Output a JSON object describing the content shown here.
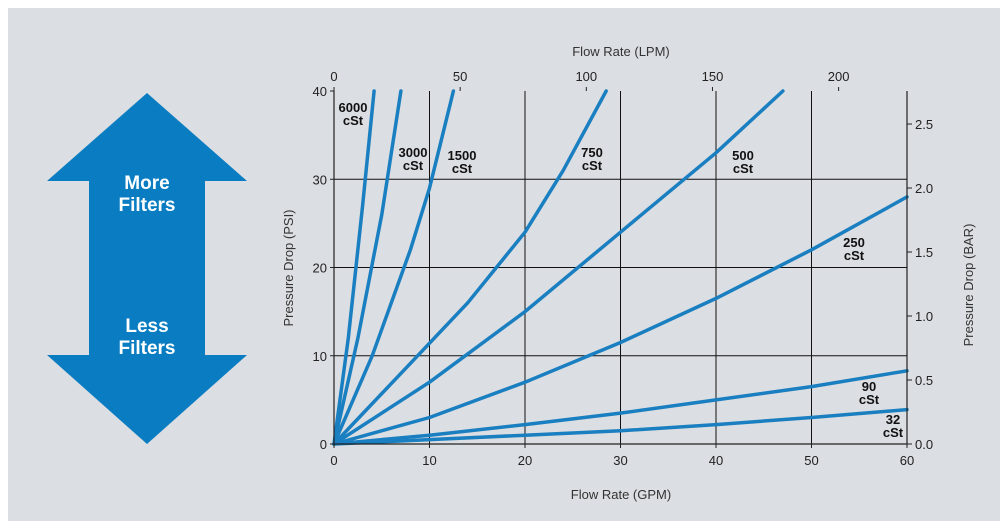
{
  "arrow": {
    "top_label_1": "More",
    "top_label_2": "Filters",
    "bottom_label_1": "Less",
    "bottom_label_2": "Filters",
    "color": "#0a7dc2"
  },
  "chart_data": {
    "type": "line",
    "title": "",
    "xlabel": "Flow Rate (GPM)",
    "ylabel": "Pressure Drop (PSI)",
    "x2label": "Flow Rate (LPM)",
    "y2label": "Pressure Drop (BAR)",
    "xlim": [
      0,
      60
    ],
    "ylim": [
      0,
      40
    ],
    "x2lim": [
      0,
      227.1
    ],
    "y2lim": [
      0,
      2.758
    ],
    "xticks": [
      "0",
      "10",
      "20",
      "30",
      "40",
      "50",
      "60"
    ],
    "yticks": [
      "0",
      "10",
      "20",
      "30",
      "40"
    ],
    "x2ticks": [
      "0",
      "50",
      "100",
      "150",
      "200"
    ],
    "y2ticks": [
      "0.0",
      "0.5",
      "1.0",
      "1.5",
      "2.0",
      "2.5"
    ],
    "grid": true,
    "line_color": "#1a7fc1",
    "series": [
      {
        "name": "6000 cSt",
        "label_1": "6000",
        "label_2": "cSt",
        "x": [
          0,
          1.5,
          3,
          4.2
        ],
        "y": [
          0,
          12,
          27,
          40
        ]
      },
      {
        "name": "3000 cSt",
        "label_1": "3000",
        "label_2": "cSt",
        "x": [
          0,
          2.5,
          5,
          7
        ],
        "y": [
          0,
          12,
          26,
          40
        ]
      },
      {
        "name": "1500 cSt",
        "label_1": "1500",
        "label_2": "cSt",
        "x": [
          0,
          4,
          8,
          10,
          12.5
        ],
        "y": [
          0,
          10,
          22,
          29,
          40
        ]
      },
      {
        "name": "750 cSt",
        "label_1": "750",
        "label_2": "cSt",
        "x": [
          0,
          7,
          14,
          20,
          24,
          28.5
        ],
        "y": [
          0,
          8,
          16,
          24,
          31,
          40
        ]
      },
      {
        "name": "500 cSt",
        "label_1": "500",
        "label_2": "cSt",
        "x": [
          0,
          10,
          20,
          30,
          40,
          47
        ],
        "y": [
          0,
          7,
          15,
          24,
          33,
          40
        ]
      },
      {
        "name": "250 cSt",
        "label_1": "250",
        "label_2": "cSt",
        "x": [
          0,
          10,
          20,
          30,
          40,
          50,
          60
        ],
        "y": [
          0,
          3,
          7,
          11.5,
          16.5,
          22,
          28
        ]
      },
      {
        "name": "90 cSt",
        "label_1": "90",
        "label_2": "cSt",
        "x": [
          0,
          10,
          20,
          30,
          40,
          50,
          60
        ],
        "y": [
          0,
          1,
          2.2,
          3.5,
          5,
          6.5,
          8.3
        ]
      },
      {
        "name": "32 cSt",
        "label_1": "32",
        "label_2": "cSt",
        "x": [
          0,
          10,
          20,
          30,
          40,
          50,
          60
        ],
        "y": [
          0,
          0.5,
          1,
          1.5,
          2.2,
          3,
          3.9
        ]
      }
    ]
  }
}
